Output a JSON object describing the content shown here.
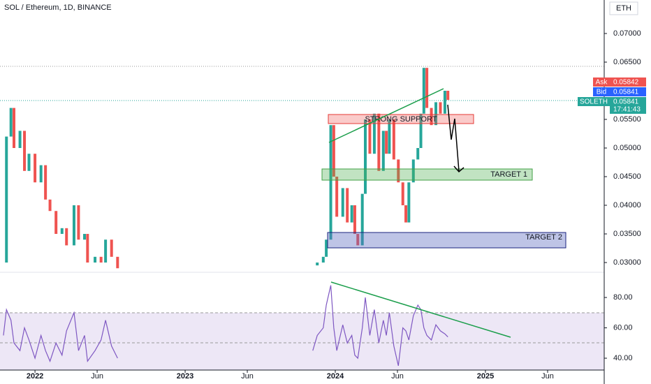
{
  "header": {
    "title": "SOL / Ethereum, 1D, BINANCE",
    "currency": "ETH"
  },
  "quotes": {
    "ask_label": "Ask",
    "ask": "0.05842",
    "bid_label": "Bid",
    "bid": "0.05841",
    "symbol": "SOLETH",
    "last": "0.05841",
    "countdown": "17:41:43"
  },
  "annotations": {
    "support": "STRONG SUPPORT",
    "target1": "TARGET 1",
    "target2": "TARGET 2"
  },
  "chart_data": [
    {
      "type": "candlestick",
      "x": [
        2021.79,
        2021.81,
        2021.84,
        2021.86,
        2021.9,
        2021.93,
        2021.96,
        2022.0,
        2022.04,
        2022.07,
        2022.1,
        2022.14,
        2022.18,
        2022.21,
        2022.26,
        2022.29,
        2022.33,
        2022.35,
        2022.4,
        2022.44,
        2022.47,
        2022.51,
        2022.55,
        2023.16,
        2023.85,
        2023.88,
        2023.92,
        2023.94,
        2023.97,
        2023.99,
        2024.01,
        2024.05,
        2024.08,
        2024.11,
        2024.13,
        2024.15,
        2024.18,
        2024.2,
        2024.23,
        2024.26,
        2024.29,
        2024.32,
        2024.34,
        2024.36,
        2024.39,
        2024.42,
        2024.45,
        2024.47,
        2024.49,
        2024.52,
        2024.55,
        2024.57,
        2024.59,
        2024.61,
        2024.64,
        2024.67,
        2024.7,
        2024.73,
        2024.75
      ],
      "values": [
        0.03,
        0.052,
        0.057,
        0.05,
        0.053,
        0.046,
        0.049,
        0.044,
        0.047,
        0.041,
        0.039,
        0.035,
        0.036,
        0.033,
        0.04,
        0.034,
        0.035,
        0.03,
        0.031,
        0.03,
        0.034,
        0.031,
        0.029,
        null,
        0.0295,
        0.03,
        0.031,
        0.034,
        0.054,
        0.045,
        0.038,
        0.043,
        0.037,
        0.04,
        0.035,
        0.033,
        0.042,
        0.055,
        0.049,
        0.056,
        0.046,
        0.053,
        0.049,
        0.055,
        0.048,
        0.044,
        0.04,
        0.037,
        0.044,
        0.048,
        0.05,
        0.056,
        0.064,
        0.057,
        0.054,
        0.058,
        0.056,
        0.06,
        0.0584
      ],
      "up_color": "#26a69a",
      "down_color": "#ef5350",
      "xlim": [
        2021.767,
        2025.791
      ],
      "xticks": [
        {
          "value": 2022,
          "label": "2022"
        },
        {
          "value": 2022.414,
          "label": "Jun"
        },
        {
          "value": 2023,
          "label": "2023"
        },
        {
          "value": 2023.414,
          "label": "Jun"
        },
        {
          "value": 2024,
          "label": "2024"
        },
        {
          "value": 2024.414,
          "label": "Jun"
        },
        {
          "value": 2025,
          "label": "2025"
        },
        {
          "value": 2025.414,
          "label": "Jun"
        }
      ],
      "ylim": [
        0.02854,
        0.07585
      ],
      "yticks": [
        {
          "value": 0.03,
          "label": "0.03000"
        },
        {
          "value": 0.035,
          "label": "0.03500"
        },
        {
          "value": 0.04,
          "label": "0.04000"
        },
        {
          "value": 0.045,
          "label": "0.04500"
        },
        {
          "value": 0.05,
          "label": "0.05000"
        },
        {
          "value": 0.055,
          "label": "0.05500"
        },
        {
          "value": 0.065,
          "label": "0.06500"
        },
        {
          "value": 0.07,
          "label": "0.07000"
        }
      ]
    },
    {
      "type": "line",
      "color": "#7e57c2",
      "x": [
        2021.79,
        2021.81,
        2021.84,
        2021.86,
        2021.9,
        2021.93,
        2021.96,
        2022.0,
        2022.04,
        2022.07,
        2022.1,
        2022.14,
        2022.18,
        2022.21,
        2022.26,
        2022.29,
        2022.33,
        2022.35,
        2022.4,
        2022.44,
        2022.47,
        2022.51,
        2022.55,
        2023.16,
        2023.85,
        2023.88,
        2023.92,
        2023.94,
        2023.97,
        2023.99,
        2024.01,
        2024.05,
        2024.08,
        2024.11,
        2024.13,
        2024.15,
        2024.18,
        2024.2,
        2024.23,
        2024.26,
        2024.29,
        2024.32,
        2024.34,
        2024.36,
        2024.39,
        2024.42,
        2024.45,
        2024.47,
        2024.49,
        2024.52,
        2024.55,
        2024.57,
        2024.59,
        2024.61,
        2024.64,
        2024.67,
        2024.7,
        2024.73,
        2024.75
      ],
      "values": [
        55,
        72,
        65,
        50,
        45,
        60,
        52,
        40,
        55,
        45,
        38,
        50,
        42,
        58,
        70,
        45,
        55,
        38,
        45,
        52,
        65,
        48,
        40,
        null,
        45,
        55,
        60,
        75,
        88,
        60,
        45,
        62,
        50,
        55,
        42,
        40,
        60,
        80,
        55,
        72,
        50,
        65,
        55,
        70,
        48,
        35,
        60,
        58,
        52,
        68,
        75,
        72,
        60,
        55,
        52,
        62,
        58,
        56,
        54
      ],
      "xlim": [
        2021.767,
        2025.791
      ],
      "ylim": [
        32.2,
        96.6
      ],
      "yticks": [
        {
          "value": 40,
          "label": "40.00"
        },
        {
          "value": 60,
          "label": "60.00"
        },
        {
          "value": 80,
          "label": "80.00"
        }
      ]
    }
  ]
}
